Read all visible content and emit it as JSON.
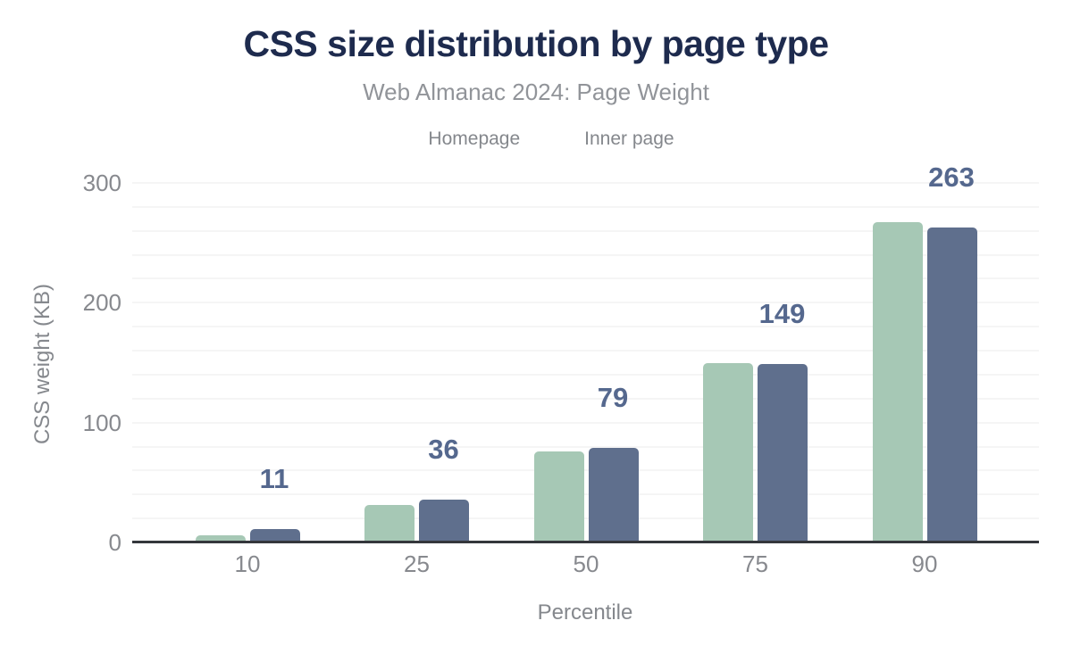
{
  "chart_data": {
    "type": "bar",
    "title": "CSS size distribution by page type",
    "subtitle": "Web Almanac 2024: Page Weight",
    "xlabel": "Percentile",
    "ylabel": "CSS weight (KB)",
    "categories": [
      "10",
      "25",
      "50",
      "75",
      "90"
    ],
    "series": [
      {
        "name": "Homepage",
        "color": "#a6c8b5",
        "values": [
          6,
          31,
          76,
          150,
          267
        ]
      },
      {
        "name": "Inner page",
        "color": "#5f6f8d",
        "values": [
          11,
          36,
          79,
          149,
          263
        ]
      }
    ],
    "value_labels": {
      "series_name": "Inner page",
      "values": [
        "11",
        "36",
        "79",
        "149",
        "263"
      ]
    },
    "ylim": [
      0,
      300
    ],
    "yticks": [
      0,
      100,
      200,
      300
    ],
    "grid_step": 20,
    "grid": true,
    "legend_position": "top"
  },
  "style": {
    "background": "#ffffff",
    "title_color": "#1e2b4e",
    "subtitle_color": "#919499",
    "legend_text_color": "#84878c",
    "tick_color": "#87898e",
    "axis_label_color": "#85888d",
    "value_label_color": "#55688e",
    "axis_line_color": "#34373c",
    "gridline_color": "#f5f5f5"
  }
}
